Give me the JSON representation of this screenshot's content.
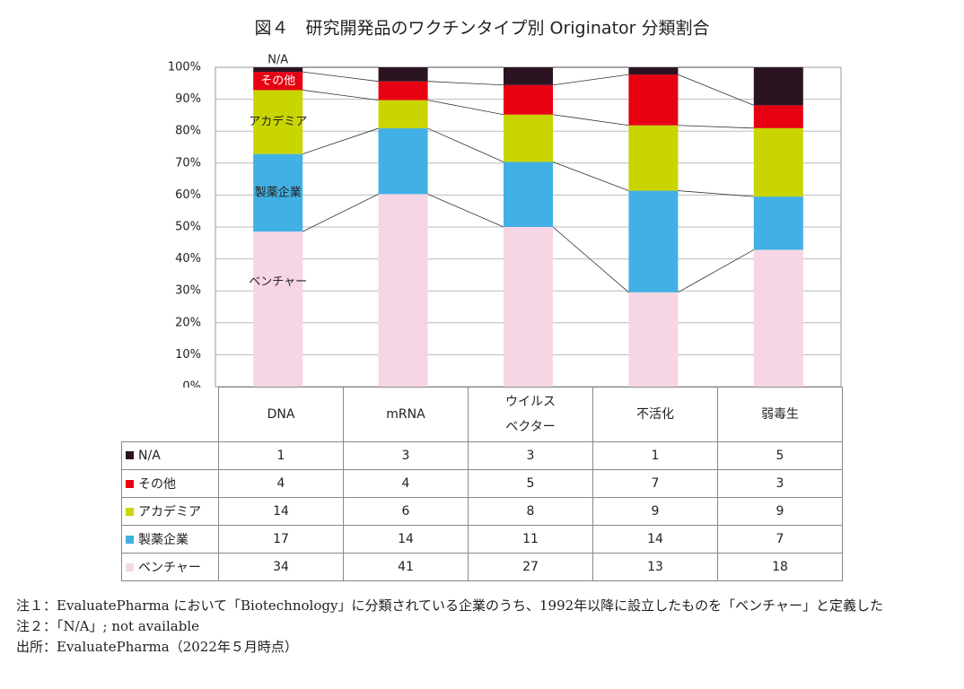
{
  "chart_data": {
    "type": "bar",
    "stack": "percent",
    "title": "図４　研究開発品のワクチンタイプ別 Originator 分類割合",
    "categories": [
      "DNA",
      "mRNA",
      "ウイルス\nベクター",
      "不活化",
      "弱毒生"
    ],
    "series": [
      {
        "name": "N/A",
        "color": "#2b1422",
        "values": [
          1,
          3,
          3,
          1,
          5
        ]
      },
      {
        "name": "その他",
        "color": "#e60012",
        "values": [
          4,
          4,
          5,
          7,
          3
        ]
      },
      {
        "name": "アカデミア",
        "color": "#c9d500",
        "values": [
          14,
          6,
          8,
          9,
          9
        ]
      },
      {
        "name": "製薬企業",
        "color": "#41b0e4",
        "values": [
          17,
          14,
          11,
          14,
          7
        ]
      },
      {
        "name": "ベンチャー",
        "color": "#f6d6e4",
        "values": [
          34,
          41,
          27,
          13,
          18
        ]
      }
    ],
    "ylim": [
      0,
      100
    ],
    "yticks": [
      {
        "value": 0,
        "label": "0%"
      },
      {
        "value": 10,
        "label": "10%"
      },
      {
        "value": 20,
        "label": "20%"
      },
      {
        "value": 30,
        "label": "30%"
      },
      {
        "value": 40,
        "label": "40%"
      },
      {
        "value": 50,
        "label": "50%"
      },
      {
        "value": 60,
        "label": "60%"
      },
      {
        "value": 70,
        "label": "70%"
      },
      {
        "value": 80,
        "label": "80%"
      },
      {
        "value": 90,
        "label": "90%"
      },
      {
        "value": 100,
        "label": "100%"
      }
    ],
    "grid": true
  },
  "notes": [
    "注１：EvaluatePharma において「Biotechnology」に分類されている企業のうち、1992年以降に設立したものを「ベンチャー」と定義した",
    "注２：「N/A」; not available",
    "出所：EvaluatePharma（2022年５月時点）"
  ]
}
